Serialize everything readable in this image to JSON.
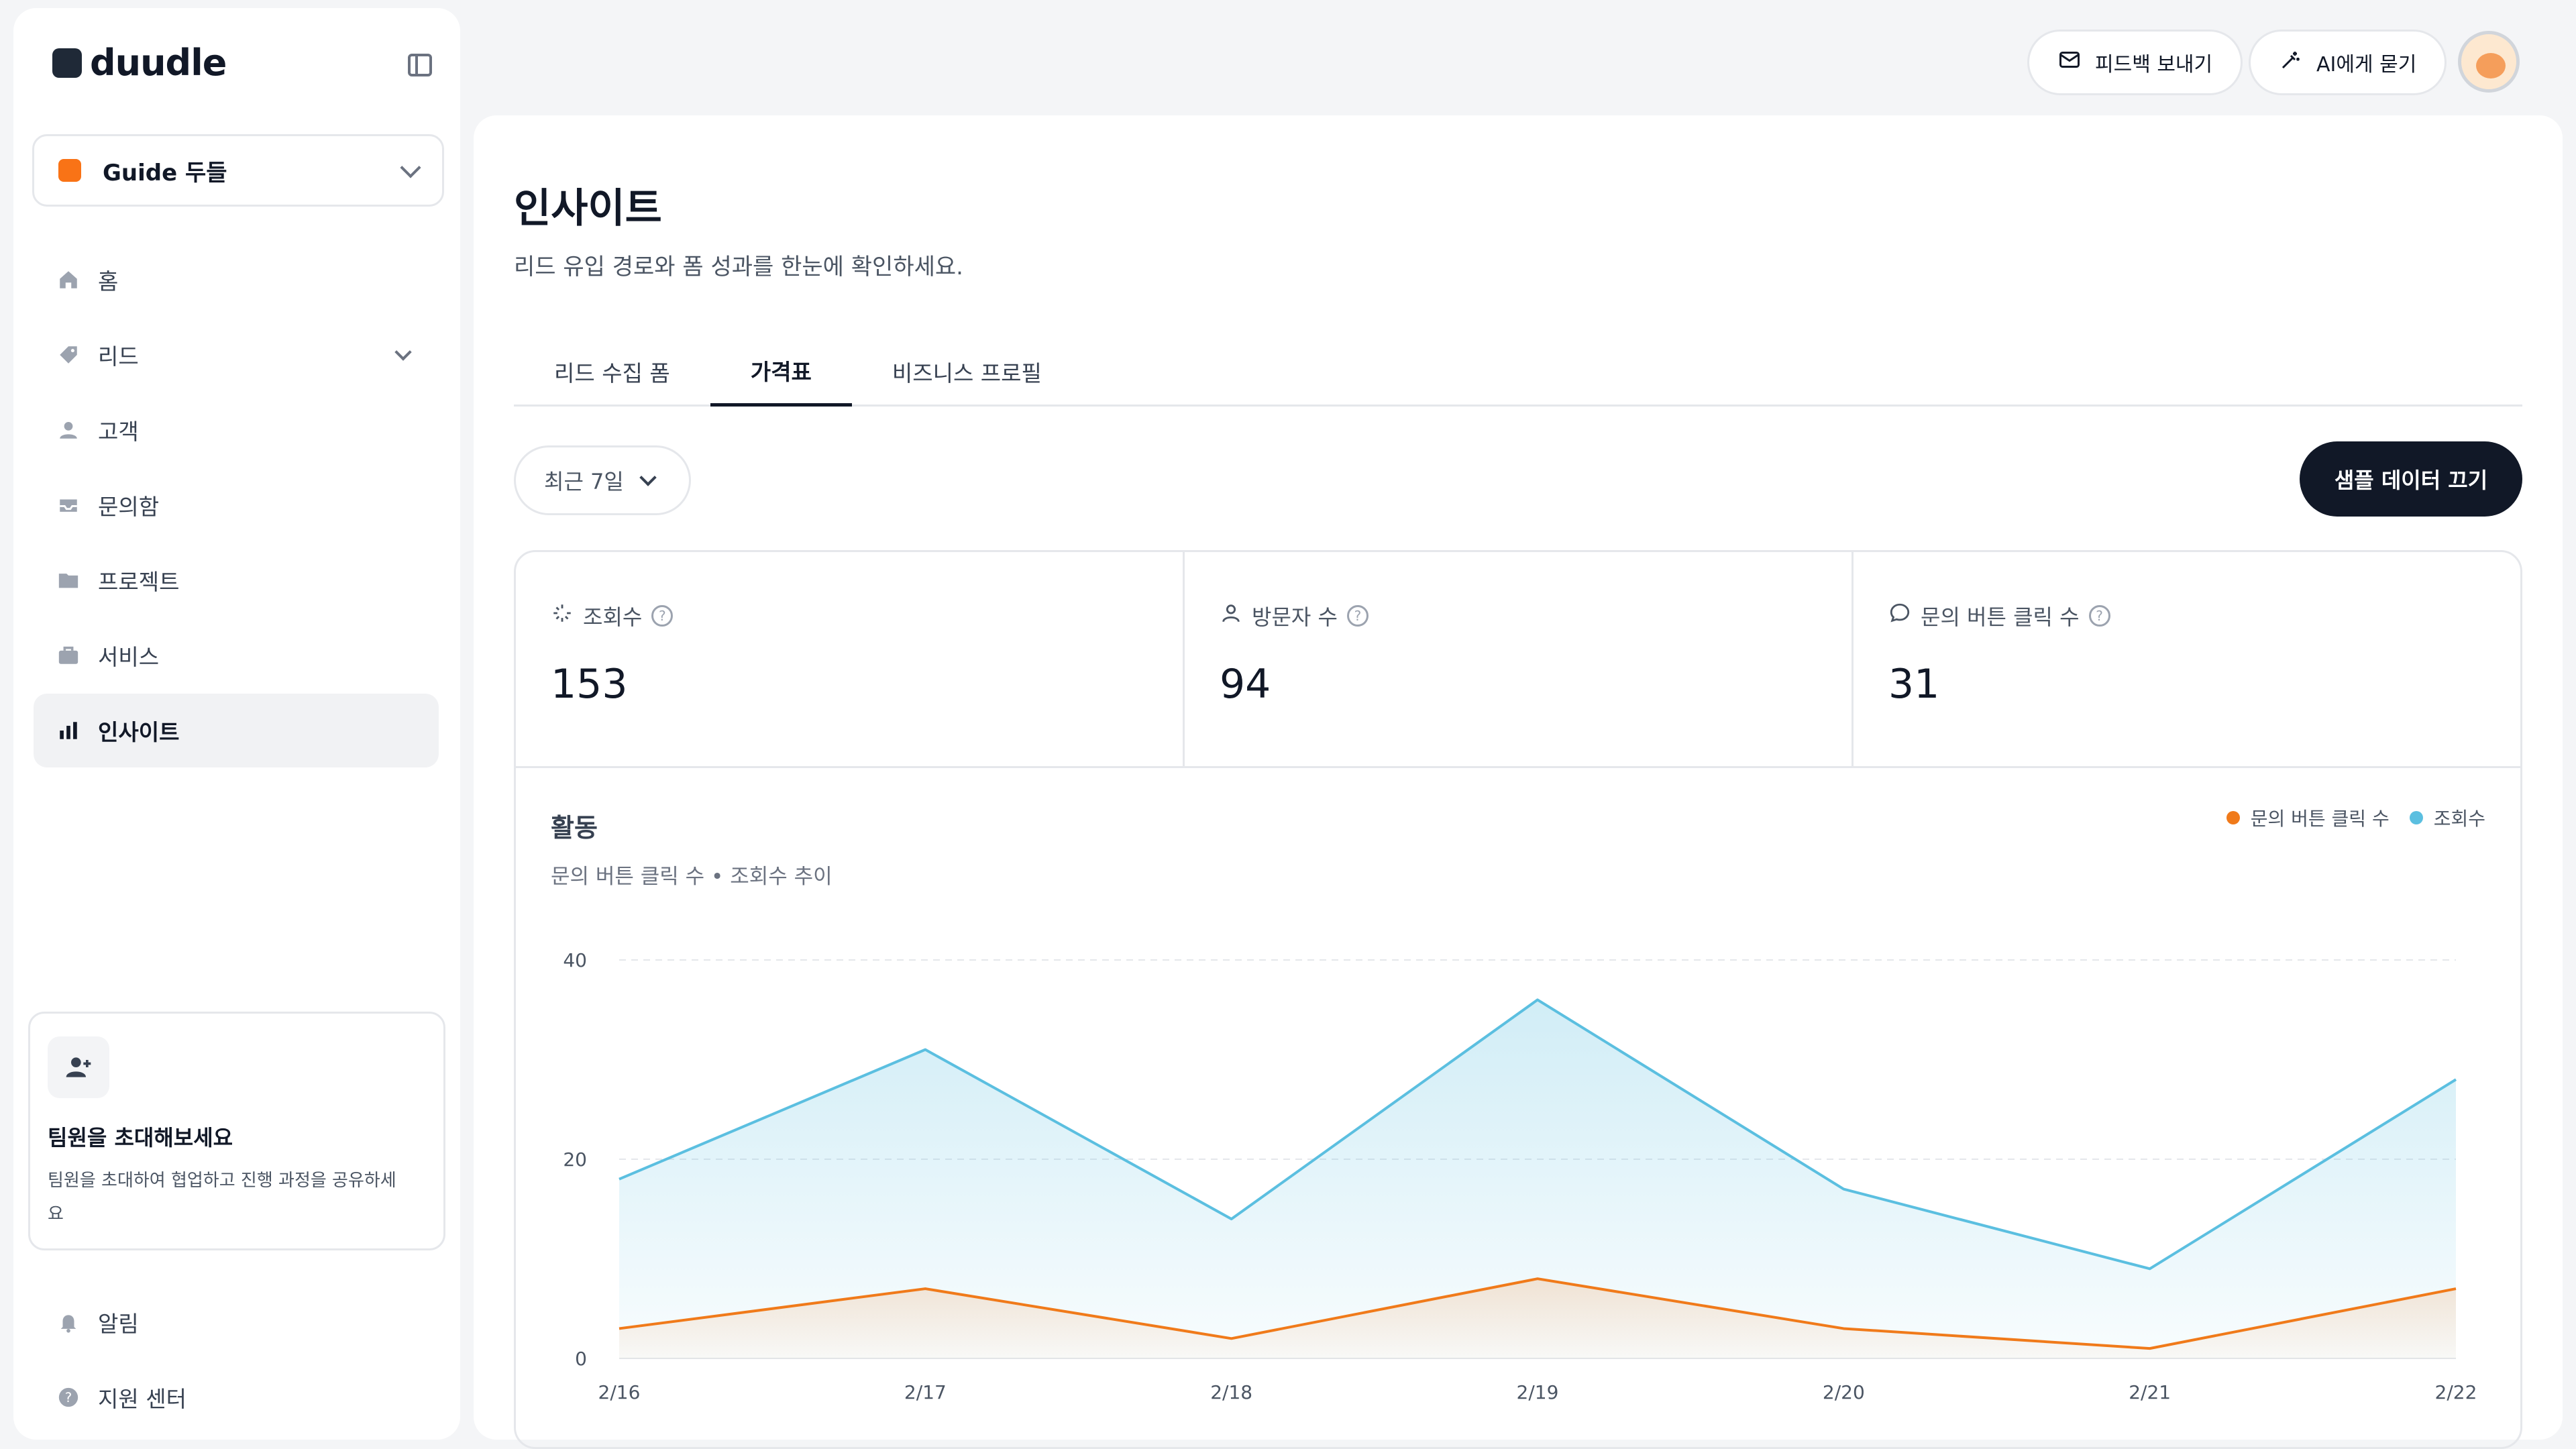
{
  "brand": {
    "name": "duudle"
  },
  "workspace": {
    "label": "Guide 두들"
  },
  "nav": [
    {
      "label": "홈",
      "icon": "home-icon"
    },
    {
      "label": "리드",
      "icon": "tag-icon"
    },
    {
      "label": "고객",
      "icon": "user-icon"
    },
    {
      "label": "문의함",
      "icon": "inbox-icon"
    },
    {
      "label": "프로젝트",
      "icon": "folder-icon"
    },
    {
      "label": "서비스",
      "icon": "briefcase-icon"
    },
    {
      "label": "인사이트",
      "icon": "bar-chart-icon"
    }
  ],
  "invite": {
    "title": "팀원을 초대해보세요",
    "desc": "팀원을 초대하여 협업하고 진행 과정을 공유하세요"
  },
  "bottom_nav": [
    {
      "label": "알림",
      "icon": "bell-icon"
    },
    {
      "label": "지원 센터",
      "icon": "help-circle-icon"
    }
  ],
  "topbar": {
    "feedback": "피드백 보내기",
    "ask_ai": "AI에게 묻기"
  },
  "page": {
    "title": "인사이트",
    "subtitle": "리드 유입 경로와 폼 성과를 한눈에 확인하세요."
  },
  "tabs": [
    {
      "label": "리드 수집 폼"
    },
    {
      "label": "가격표"
    },
    {
      "label": "비즈니스 프로필"
    }
  ],
  "period": {
    "label": "최근 7일"
  },
  "sample_button": "샘플 데이터 끄기",
  "stats": [
    {
      "label": "조회수",
      "value": "153"
    },
    {
      "label": "방문자 수",
      "value": "94"
    },
    {
      "label": "문의 버튼 클릭 수",
      "value": "31"
    }
  ],
  "colors": {
    "views": "#5bbfe0",
    "clicks": "#f07a1a",
    "dark": "#111827"
  },
  "chart_data": {
    "type": "area",
    "title": "활동",
    "subtitle": "문의 버튼 클릭 수 • 조회수 추이",
    "x": [
      "2/16",
      "2/17",
      "2/18",
      "2/19",
      "2/20",
      "2/21",
      "2/22"
    ],
    "y_ticks": [
      0,
      20,
      40
    ],
    "ylim": [
      0,
      40
    ],
    "grid": true,
    "legend_position": "top-right",
    "series": [
      {
        "name": "문의 버튼 클릭 수",
        "values": [
          3,
          7,
          2,
          8,
          3,
          1,
          7
        ]
      },
      {
        "name": "조회수",
        "values": [
          18,
          31,
          14,
          36,
          17,
          9,
          28
        ]
      }
    ]
  }
}
